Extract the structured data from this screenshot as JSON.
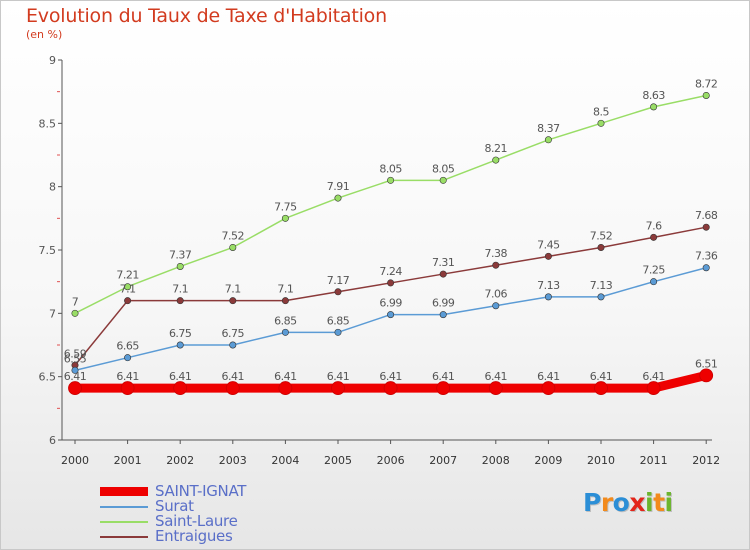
{
  "title": "Evolution du Taux de Taxe d'Habitation",
  "subtitle": "(en %)",
  "brand": {
    "letters": [
      "P",
      "r",
      "o",
      "x",
      "i",
      "t",
      "i"
    ],
    "colors": [
      "#2b8ed6",
      "#f28a1c",
      "#2b8ed6",
      "#e3261b",
      "#6cb52d",
      "#f28a1c",
      "#6cb52d"
    ]
  },
  "chart_data": {
    "type": "line",
    "x": [
      "2000",
      "2001",
      "2002",
      "2003",
      "2004",
      "2005",
      "2006",
      "2007",
      "2008",
      "2009",
      "2010",
      "2011",
      "2012"
    ],
    "ylim": [
      6,
      9
    ],
    "yticks": [
      "6",
      "6.5",
      "7",
      "7.5",
      "8",
      "8.5",
      "9"
    ],
    "grid": false,
    "legend_position": "bottom-left",
    "series": [
      {
        "name": "SAINT-IGNAT",
        "color": "#ee0000",
        "values": [
          6.41,
          6.41,
          6.41,
          6.41,
          6.41,
          6.41,
          6.41,
          6.41,
          6.41,
          6.41,
          6.41,
          6.41,
          6.51
        ],
        "labels": [
          "6.41",
          "6.41",
          "6.41",
          "6.41",
          "6.41",
          "6.41",
          "6.41",
          "6.41",
          "6.41",
          "6.41",
          "6.41",
          "6.41",
          "6.51"
        ]
      },
      {
        "name": "Surat",
        "color": "#5b9bd5",
        "values": [
          6.55,
          6.65,
          6.75,
          6.75,
          6.85,
          6.85,
          6.99,
          6.99,
          7.06,
          7.13,
          7.13,
          7.25,
          7.36
        ],
        "labels": [
          "6.55",
          "6.65",
          "6.75",
          "6.75",
          "6.85",
          "6.85",
          "6.99",
          "6.99",
          "7.06",
          "7.13",
          "7.13",
          "7.25",
          "7.36"
        ]
      },
      {
        "name": "Saint-Laure",
        "color": "#99dd66",
        "values": [
          7,
          7.21,
          7.37,
          7.52,
          7.75,
          7.91,
          8.05,
          8.05,
          8.21,
          8.37,
          8.5,
          8.63,
          8.72
        ],
        "labels": [
          "7",
          "7.21",
          "7.37",
          "7.52",
          "7.75",
          "7.91",
          "8.05",
          "8.05",
          "8.21",
          "8.37",
          "8.5",
          "8.63",
          "8.72"
        ]
      },
      {
        "name": "Entraigues",
        "color": "#8b3a3a",
        "values": [
          6.59,
          7.1,
          7.1,
          7.1,
          7.1,
          7.17,
          7.24,
          7.31,
          7.38,
          7.45,
          7.52,
          7.6,
          7.68
        ],
        "labels": [
          "6.59",
          "7.1",
          "7.1",
          "7.1",
          "7.1",
          "7.17",
          "7.24",
          "7.31",
          "7.38",
          "7.45",
          "7.52",
          "7.6",
          "7.68"
        ]
      }
    ]
  }
}
